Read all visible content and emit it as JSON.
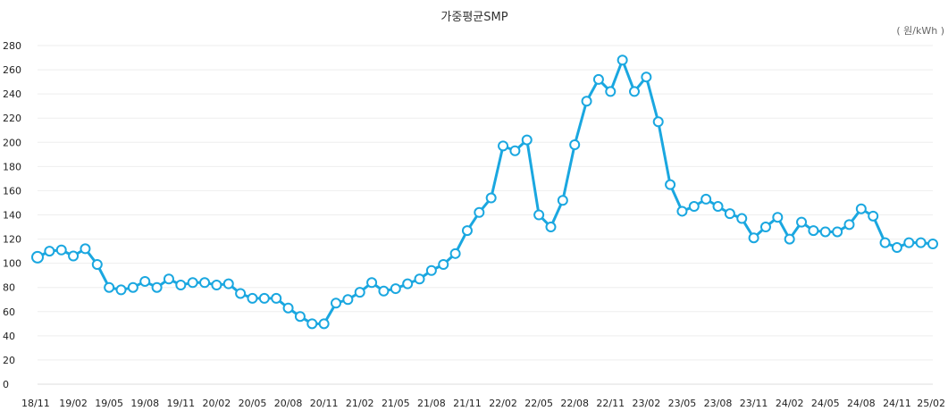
{
  "colors": {
    "series": "#1aa7e0"
  },
  "chart_data": {
    "type": "line",
    "title": "가중평균SMP",
    "unit": "( 원/kWh )",
    "ylim": [
      0,
      280
    ],
    "yticks": [
      0,
      20,
      40,
      60,
      80,
      100,
      120,
      140,
      160,
      180,
      200,
      220,
      240,
      260,
      280
    ],
    "xtick_labels": [
      "18/11",
      "19/02",
      "19/05",
      "19/08",
      "19/11",
      "20/02",
      "20/05",
      "20/08",
      "20/11",
      "21/02",
      "21/05",
      "21/08",
      "21/11",
      "22/02",
      "22/05",
      "22/08",
      "22/11",
      "23/02",
      "23/05",
      "23/08",
      "23/11",
      "24/02",
      "24/05",
      "24/08",
      "24/11",
      "25/02"
    ],
    "grid": true,
    "series": [
      {
        "name": "가중평균SMP",
        "values": [
          105,
          110,
          111,
          106,
          112,
          99,
          80,
          78,
          80,
          85,
          80,
          87,
          82,
          84,
          84,
          82,
          83,
          75,
          71,
          71,
          71,
          63,
          56,
          50,
          50,
          67,
          70,
          76,
          84,
          77,
          79,
          83,
          87,
          94,
          99,
          108,
          127,
          142,
          154,
          197,
          193,
          202,
          140,
          130,
          152,
          198,
          234,
          252,
          242,
          268,
          242,
          254,
          217,
          165,
          143,
          147,
          153,
          147,
          141,
          137,
          121,
          130,
          138,
          120,
          134,
          127,
          126,
          126,
          132,
          145,
          139,
          117,
          113,
          117,
          117,
          116
        ]
      }
    ]
  }
}
